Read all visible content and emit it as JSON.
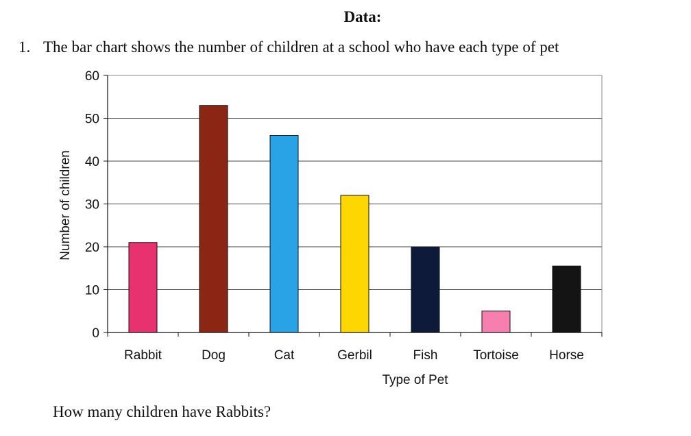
{
  "header": {
    "title": "Data:"
  },
  "question": {
    "number": "1.",
    "text": "The bar chart shows the number of children at a school who have each type of pet"
  },
  "prompt": {
    "text": "How many children have Rabbits?"
  },
  "chart_data": {
    "type": "bar",
    "title": "",
    "xlabel": "Type of Pet",
    "ylabel": "Number of children",
    "categories": [
      "Rabbit",
      "Dog",
      "Cat",
      "Gerbil",
      "Fish",
      "Tortoise",
      "Horse"
    ],
    "values": [
      21,
      53,
      46,
      32,
      20,
      5,
      15.5
    ],
    "colors": [
      "#e8316f",
      "#8b2614",
      "#2aa3e6",
      "#ffd700",
      "#0e1a3a",
      "#f77fb0",
      "#141414"
    ],
    "ylim": [
      0,
      60
    ],
    "yticks": [
      0,
      10,
      20,
      30,
      40,
      50,
      60
    ],
    "grid": true,
    "legend": "none"
  }
}
